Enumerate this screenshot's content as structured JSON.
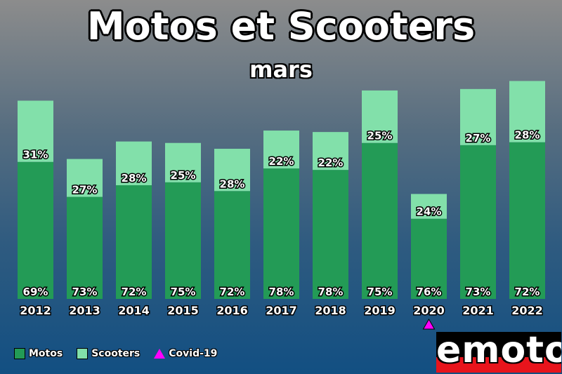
{
  "colors": {
    "motos": "#239b56",
    "scooters": "#82e0aa",
    "covid": "#ff00ff"
  },
  "logo": {
    "text": "emoto"
  },
  "chart_data": {
    "type": "bar",
    "stacked": true,
    "title": "Motos et Scooters",
    "subtitle": "mars",
    "categories": [
      "2012",
      "2013",
      "2014",
      "2015",
      "2016",
      "2017",
      "2018",
      "2019",
      "2020",
      "2021",
      "2022"
    ],
    "series": [
      {
        "name": "Motos",
        "percent_labels": [
          "69%",
          "73%",
          "72%",
          "75%",
          "72%",
          "78%",
          "78%",
          "75%",
          "76%",
          "73%",
          "72%"
        ],
        "values": [
          188,
          140,
          156,
          160,
          148,
          179,
          177,
          214,
          110,
          211,
          215
        ]
      },
      {
        "name": "Scooters",
        "percent_labels": [
          "31%",
          "27%",
          "28%",
          "25%",
          "28%",
          "22%",
          "22%",
          "25%",
          "24%",
          "27%",
          "28%"
        ],
        "values": [
          84,
          52,
          60,
          54,
          58,
          52,
          52,
          72,
          34,
          77,
          84
        ]
      }
    ],
    "annotations": [
      {
        "category": "2020",
        "marker": "triangle",
        "label": "Covid-19"
      }
    ],
    "legend": {
      "position": "bottom-left",
      "entries": [
        "Motos",
        "Scooters",
        "Covid-19"
      ]
    },
    "ylim": [
      0,
      310
    ],
    "grid": false
  }
}
